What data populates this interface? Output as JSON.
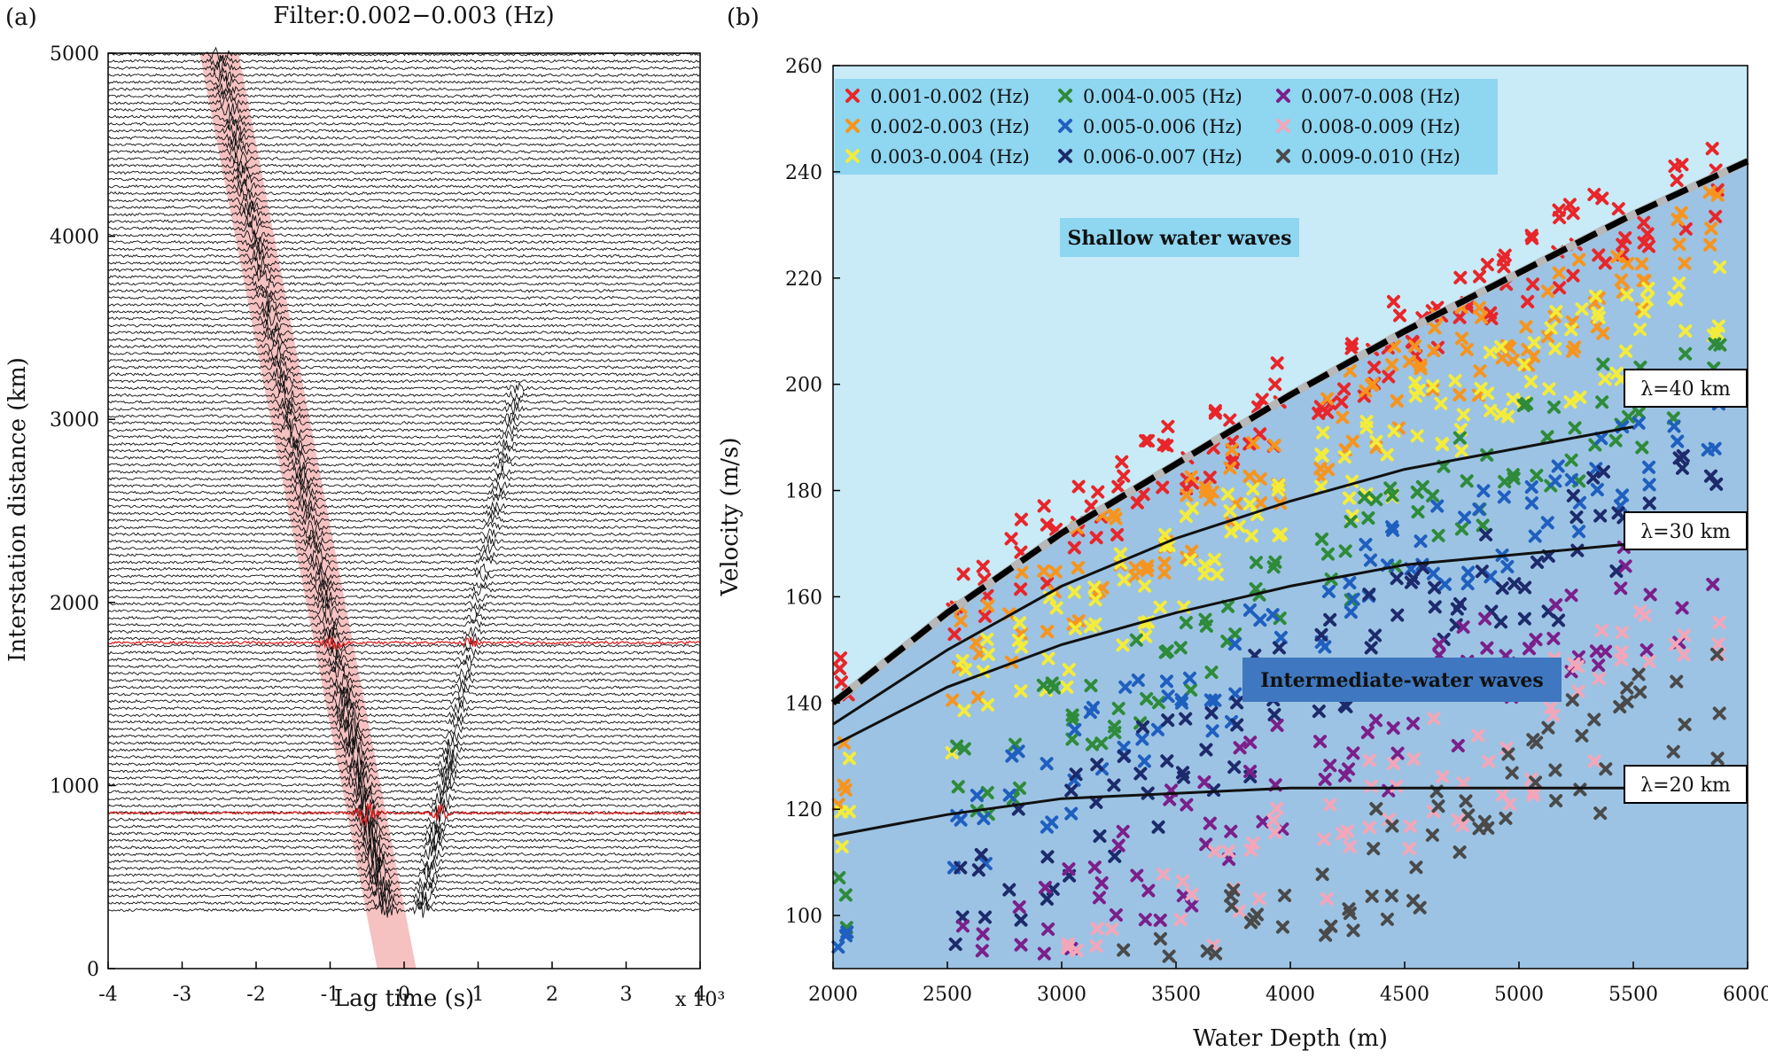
{
  "chart_data": [
    {
      "panel": "(a)",
      "type": "line",
      "title": "Filter:0.002−0.003 (Hz)",
      "xlabel": "Lag time (s)",
      "ylabel": "Interstation distance (km)",
      "xscale_note": "x 10³",
      "xlim": [
        -4,
        4
      ],
      "ylim": [
        0,
        5000
      ],
      "xticks": [
        "-4",
        "-3",
        "-2",
        "-1",
        "0",
        "1",
        "2",
        "3",
        "4"
      ],
      "yticks": [
        "0",
        "1000",
        "2000",
        "3000",
        "4000",
        "5000"
      ],
      "grid": false,
      "series": [
        {
          "name": "cross-correlation traces",
          "color": "#111111"
        },
        {
          "name": "highlighted traces",
          "color": "#e02020",
          "distances_km": [
            1780,
            850
          ]
        },
        {
          "name": "move-out band",
          "color": "#f4b6b6",
          "x_at_distance_0": -0.1,
          "x_at_distance_5000": -2.5
        }
      ]
    },
    {
      "panel": "(b)",
      "type": "scatter",
      "xlabel": "Water Depth (m)",
      "ylabel": "Velocity (m/s)",
      "xlim": [
        2000,
        6000
      ],
      "ylim": [
        90,
        260
      ],
      "xticks": [
        "2000",
        "2500",
        "3000",
        "3500",
        "4000",
        "4500",
        "5000",
        "5500",
        "6000"
      ],
      "yticks": [
        "100",
        "120",
        "140",
        "160",
        "180",
        "200",
        "220",
        "240",
        "260"
      ],
      "grid": false,
      "legend_position": "top-left",
      "series": [
        {
          "name": "0.001-0.002 (Hz)",
          "color": "#e8262a"
        },
        {
          "name": "0.002-0.003 (Hz)",
          "color": "#f7941d"
        },
        {
          "name": "0.003-0.004 (Hz)",
          "color": "#f4ec3a"
        },
        {
          "name": "0.004-0.005 (Hz)",
          "color": "#2e8b3a"
        },
        {
          "name": "0.005-0.006 (Hz)",
          "color": "#1f5fbf"
        },
        {
          "name": "0.006-0.007 (Hz)",
          "color": "#1d2a6b"
        },
        {
          "name": "0.007-0.008 (Hz)",
          "color": "#7b1f8a"
        },
        {
          "name": "0.008-0.009 (Hz)",
          "color": "#f4a6b8"
        },
        {
          "name": "0.009-0.010 (Hz)",
          "color": "#4a4a4a"
        }
      ],
      "curves": [
        {
          "name": "shallow water limit",
          "style": "dashed",
          "x": [
            2000,
            2500,
            3000,
            3500,
            4000,
            4500,
            5000,
            5500,
            6000
          ],
          "y": [
            140,
            157,
            172,
            185,
            198,
            210,
            221,
            232,
            242
          ]
        },
        {
          "name": "λ=40 km",
          "style": "solid",
          "x": [
            2000,
            2500,
            3000,
            3500,
            4000,
            4500,
            5000,
            5500
          ],
          "y": [
            136,
            150,
            162,
            171,
            178,
            184,
            188,
            192
          ]
        },
        {
          "name": "λ=30 km",
          "style": "solid",
          "x": [
            2000,
            2500,
            3000,
            3500,
            4000,
            4500,
            5000,
            5500
          ],
          "y": [
            132,
            143,
            151,
            157,
            162,
            166,
            168,
            170
          ]
        },
        {
          "name": "λ=20 km",
          "style": "solid",
          "x": [
            2000,
            2500,
            3000,
            3500,
            4000,
            4500,
            5000,
            5500
          ],
          "y": [
            115,
            119,
            122,
            123,
            124,
            124,
            124,
            124
          ]
        }
      ],
      "lambda_labels": [
        "λ=40 km",
        "λ=30 km",
        "λ=20 km"
      ],
      "regions": [
        "Shallow water waves",
        "Intermediate-water waves"
      ]
    }
  ],
  "panel_labels": [
    "(a)",
    "(b)"
  ]
}
